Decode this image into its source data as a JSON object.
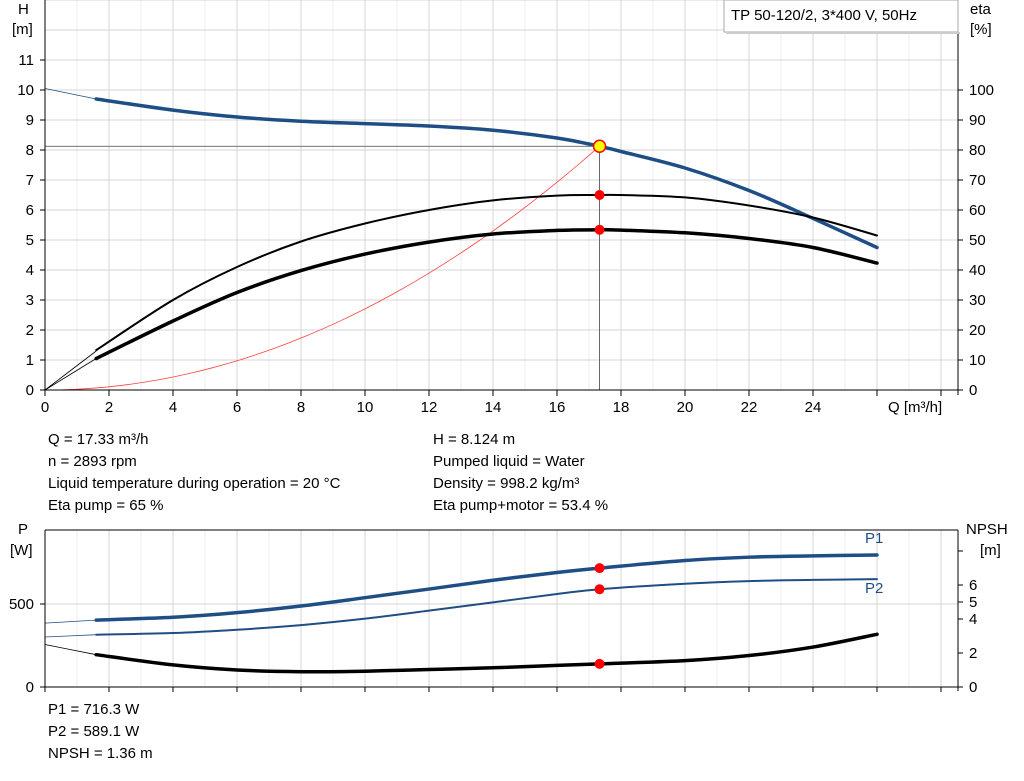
{
  "title": "TP 50-120/2, 3*400 V, 50Hz",
  "chart_data": [
    {
      "type": "line",
      "xlabel": "Q [m³/h]",
      "ylabel_left": [
        "H",
        "[m]"
      ],
      "ylabel_right": [
        "eta",
        "[%]"
      ],
      "xlim": [
        0,
        28
      ],
      "ylim_left": [
        0,
        13
      ],
      "ylim_right": [
        0,
        130
      ],
      "x_ticks": [
        0,
        2,
        4,
        6,
        8,
        10,
        12,
        14,
        16,
        18,
        20,
        22,
        24
      ],
      "y_ticks_left": [
        0,
        1,
        2,
        3,
        4,
        5,
        6,
        7,
        8,
        9,
        10,
        11
      ],
      "y_ticks_right": [
        0,
        10,
        20,
        30,
        40,
        50,
        60,
        70,
        80,
        90,
        100
      ],
      "grid": true,
      "colors": {
        "head": "#1f4e84",
        "eta": "#000000",
        "system": "#ff4040",
        "point": "#ff0000",
        "duty_point": "#ffff00"
      },
      "series": [
        {
          "key": "H",
          "axis": "left",
          "extension": [
            [
              0,
              10.05
            ],
            [
              1.6,
              9.7
            ]
          ],
          "points": [
            [
              1.6,
              9.7
            ],
            [
              4,
              9.33
            ],
            [
              6,
              9.1
            ],
            [
              8,
              8.96
            ],
            [
              10,
              8.88
            ],
            [
              12,
              8.8
            ],
            [
              14,
              8.66
            ],
            [
              16,
              8.4
            ],
            [
              17.33,
              8.124
            ],
            [
              18,
              7.95
            ],
            [
              20,
              7.4
            ],
            [
              22,
              6.65
            ],
            [
              24,
              5.72
            ],
            [
              26,
              4.75
            ]
          ]
        },
        {
          "key": "eta_pump",
          "axis": "right",
          "extension": [
            [
              0,
              0
            ],
            [
              1.6,
              13
            ]
          ],
          "points": [
            [
              1.6,
              13.3
            ],
            [
              4,
              30
            ],
            [
              6,
              41
            ],
            [
              8,
              49.5
            ],
            [
              10,
              55.5
            ],
            [
              12,
              60
            ],
            [
              14,
              63.2
            ],
            [
              16,
              64.8
            ],
            [
              17.33,
              65
            ],
            [
              18,
              65
            ],
            [
              20,
              64.2
            ],
            [
              22,
              61.5
            ],
            [
              24,
              57.5
            ],
            [
              26,
              51.5
            ]
          ]
        },
        {
          "key": "eta_pump_motor",
          "axis": "right",
          "extension": [
            [
              0,
              0
            ],
            [
              1.6,
              10.5
            ]
          ],
          "points": [
            [
              1.6,
              10.5
            ],
            [
              4,
              23
            ],
            [
              6,
              32.5
            ],
            [
              8,
              39.8
            ],
            [
              10,
              45.3
            ],
            [
              12,
              49.3
            ],
            [
              14,
              52
            ],
            [
              16,
              53.2
            ],
            [
              17.33,
              53.4
            ],
            [
              18,
              53.3
            ],
            [
              20,
              52.4
            ],
            [
              22,
              50.5
            ],
            [
              24,
              47.5
            ],
            [
              26,
              42.3
            ]
          ]
        },
        {
          "key": "system_curve",
          "axis": "left",
          "function": "H = 8.124*(Q/17.33)^2",
          "q_range": [
            0,
            17.33
          ]
        }
      ],
      "duty_point": {
        "Q": 17.33,
        "H": 8.124,
        "eta_pump": 65,
        "eta_pump_motor": 53.4
      }
    },
    {
      "type": "line",
      "ylabel_left": [
        "P",
        "[W]"
      ],
      "ylabel_right": [
        "NPSH",
        "[m]"
      ],
      "xlim": [
        0,
        28
      ],
      "ylim_left": [
        0,
        950
      ],
      "ylim_right": [
        0,
        9.2
      ],
      "x_ticks": [
        0,
        2,
        4,
        6,
        8,
        10,
        12,
        14,
        16,
        18,
        20,
        22,
        24,
        26
      ],
      "y_ticks_left": [
        0,
        500
      ],
      "y_ticks_right": [
        0,
        2,
        4,
        5,
        6,
        8
      ],
      "y_tick_labels_right": [
        "0",
        "2",
        "4",
        "5",
        "6",
        ""
      ],
      "series": [
        {
          "key": "P1",
          "name": "P1",
          "axis": "left",
          "extension": [
            [
              0,
              385
            ],
            [
              1.6,
              403
            ]
          ],
          "points": [
            [
              1.6,
              403
            ],
            [
              4,
              420
            ],
            [
              6,
              448
            ],
            [
              8,
              488
            ],
            [
              10,
              538
            ],
            [
              12,
              590
            ],
            [
              14,
              643
            ],
            [
              16,
              690
            ],
            [
              17.33,
              716.3
            ],
            [
              20,
              762
            ],
            [
              22,
              782
            ],
            [
              24,
              790
            ],
            [
              26,
              795
            ]
          ]
        },
        {
          "key": "P2",
          "name": "P2",
          "axis": "left",
          "extension": [
            [
              0,
              301
            ],
            [
              1.6,
              315
            ]
          ],
          "points": [
            [
              1.6,
              315
            ],
            [
              4,
              325
            ],
            [
              6,
              345
            ],
            [
              8,
              373
            ],
            [
              10,
              412
            ],
            [
              12,
              460
            ],
            [
              14,
              510
            ],
            [
              16,
              560
            ],
            [
              17.33,
              589.1
            ],
            [
              20,
              622
            ],
            [
              22,
              638
            ],
            [
              24,
              645
            ],
            [
              26,
              650
            ]
          ]
        },
        {
          "key": "NPSH",
          "axis": "right",
          "extension": [
            [
              0,
              2.5
            ],
            [
              1.6,
              1.9
            ]
          ],
          "points": [
            [
              1.6,
              1.9
            ],
            [
              4,
              1.3
            ],
            [
              6,
              1.0
            ],
            [
              8,
              0.9
            ],
            [
              10,
              0.93
            ],
            [
              12,
              1.03
            ],
            [
              14,
              1.13
            ],
            [
              16,
              1.27
            ],
            [
              17.33,
              1.36
            ],
            [
              20,
              1.55
            ],
            [
              22,
              1.85
            ],
            [
              24,
              2.35
            ],
            [
              26,
              3.1
            ]
          ]
        }
      ],
      "duty_point": {
        "Q": 17.33,
        "P1": 716.3,
        "P2": 589.1,
        "NPSH": 1.36
      }
    }
  ],
  "info_top_left": [
    "Q = 17.33 m³/h",
    "n = 2893 rpm",
    "Liquid temperature during operation = 20 °C",
    "Eta pump = 65 %"
  ],
  "info_top_right": [
    "H = 8.124 m",
    "Pumped liquid = Water",
    "Density = 998.2 kg/m³",
    "Eta pump+motor = 53.4 %"
  ],
  "info_bottom": [
    "P1 = 716.3 W",
    "P2 = 589.1 W",
    "NPSH = 1.36 m"
  ]
}
